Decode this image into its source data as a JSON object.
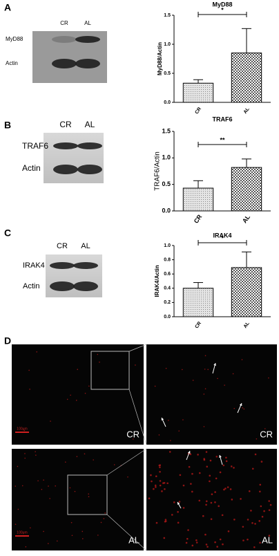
{
  "chart_data": [
    {
      "type": "bar",
      "title": "MyD88",
      "y_label": "MyD88/Actin",
      "categories": [
        "CR",
        "AL"
      ],
      "values": [
        0.33,
        0.85
      ],
      "errors": [
        0.06,
        0.42
      ],
      "significance": "*",
      "ylim": [
        0,
        1.5
      ],
      "yticks": [
        {
          "value": 0,
          "label": "0.0"
        },
        {
          "value": 0.5,
          "label": "0.5"
        },
        {
          "value": 1,
          "label": "1.0"
        },
        {
          "value": 1.5,
          "label": "1.5"
        }
      ]
    },
    {
      "type": "bar",
      "title": "TRAF6",
      "y_label": "TRAF6/Actin",
      "categories": [
        "CR",
        "AL"
      ],
      "values": [
        0.43,
        0.82
      ],
      "errors": [
        0.14,
        0.16
      ],
      "significance": "**",
      "ylim": [
        0,
        1.5
      ],
      "yticks": [
        {
          "value": 0,
          "label": "0.0"
        },
        {
          "value": 0.5,
          "label": "0.5"
        },
        {
          "value": 1,
          "label": "1.0"
        },
        {
          "value": 1.5,
          "label": "1.5"
        }
      ]
    },
    {
      "type": "bar",
      "title": "IRAK4",
      "y_label": "IRAK4/Actin",
      "categories": [
        "CR",
        "AL"
      ],
      "values": [
        0.4,
        0.69
      ],
      "errors": [
        0.08,
        0.22
      ],
      "significance": "*",
      "ylim": [
        0,
        1
      ],
      "yticks": [
        {
          "value": 0,
          "label": "0.0"
        },
        {
          "value": 0.2,
          "label": "0.2"
        },
        {
          "value": 0.4,
          "label": "0.4"
        },
        {
          "value": 0.6,
          "label": "0.6"
        },
        {
          "value": 0.8,
          "label": "0.8"
        },
        {
          "value": 1,
          "label": "1.0"
        }
      ]
    }
  ],
  "blots": [
    {
      "letter": "A",
      "lanes": [
        "CR",
        "AL"
      ],
      "rows": [
        "MyD88",
        "Actin"
      ]
    },
    {
      "letter": "B",
      "lanes": [
        "CR",
        "AL"
      ],
      "rows": [
        "TRAF6",
        "Actin"
      ]
    },
    {
      "letter": "C",
      "lanes": [
        "CR",
        "AL"
      ],
      "rows": [
        "IRAK4",
        "Actin"
      ]
    }
  ],
  "microscopy": {
    "letter": "D",
    "scale_bar": "100μm",
    "labels": [
      "CR",
      "CR",
      "AL",
      "AL"
    ]
  }
}
